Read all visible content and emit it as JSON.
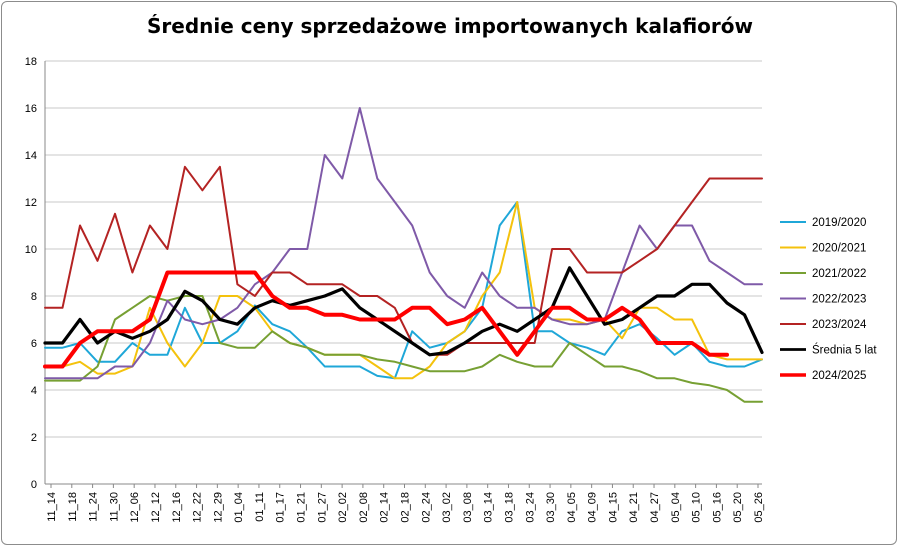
{
  "chart_data": {
    "type": "line",
    "title": "Średnie ceny sprzedażowe importowanych kalafiorów",
    "xlabel": "",
    "ylabel": "",
    "ylim": [
      0,
      18
    ],
    "y_ticks": [
      0,
      2,
      4,
      6,
      8,
      10,
      12,
      14,
      16,
      18
    ],
    "grid": "horizontal",
    "legend_position": "right",
    "x_tick_labels": [
      "11_14",
      "11_18",
      "11_24",
      "11_30",
      "12_06",
      "12_12",
      "12_16",
      "12_22",
      "12_29",
      "01_04",
      "01_11",
      "01_17",
      "01_21",
      "01_27",
      "02_02",
      "02_08",
      "02_14",
      "02_18",
      "02_24",
      "03_02",
      "03_08",
      "03_14",
      "03_18",
      "03_24",
      "03_30",
      "04_05",
      "04_09",
      "04_15",
      "04_21",
      "04_27",
      "05_04",
      "05_10",
      "05_16",
      "05_20",
      "05_26"
    ],
    "series": [
      {
        "name": "2019/2020",
        "color": "#1fa7d8",
        "width": 2,
        "values": [
          5.8,
          5.8,
          6.0,
          5.2,
          5.2,
          6.0,
          5.5,
          5.5,
          7.5,
          6.0,
          6.0,
          6.5,
          7.6,
          6.8,
          6.5,
          5.8,
          5.0,
          5.0,
          5.0,
          4.6,
          4.5,
          6.5,
          5.8,
          6.0,
          6.5,
          7.5,
          11.0,
          12.0,
          6.5,
          6.5,
          6.0,
          5.8,
          5.5,
          6.5,
          6.8,
          6.2,
          5.5,
          6.0,
          5.2,
          5.0,
          5.0,
          5.3
        ]
      },
      {
        "name": "2020/2021",
        "color": "#f4c20d",
        "width": 2,
        "values": [
          5.0,
          5.0,
          5.2,
          4.7,
          4.7,
          5.0,
          7.5,
          6.0,
          5.0,
          6.0,
          8.0,
          8.0,
          7.5,
          6.5,
          6.0,
          5.8,
          5.5,
          5.5,
          5.5,
          5.0,
          4.5,
          4.5,
          5.0,
          6.0,
          6.5,
          8.0,
          9.0,
          12.0,
          7.5,
          7.0,
          7.0,
          6.8,
          7.0,
          6.2,
          7.5,
          7.5,
          7.0,
          7.0,
          5.5,
          5.3,
          5.3,
          5.3
        ]
      },
      {
        "name": "2021/2022",
        "color": "#77a033",
        "width": 2,
        "values": [
          4.4,
          4.4,
          4.4,
          5.0,
          7.0,
          7.5,
          8.0,
          7.8,
          8.0,
          8.0,
          6.0,
          5.8,
          5.8,
          6.5,
          6.0,
          5.8,
          5.5,
          5.5,
          5.5,
          5.3,
          5.2,
          5.0,
          4.8,
          4.8,
          4.8,
          5.0,
          5.5,
          5.2,
          5.0,
          5.0,
          6.0,
          5.5,
          5.0,
          5.0,
          4.8,
          4.5,
          4.5,
          4.3,
          4.2,
          4.0,
          3.5,
          3.5
        ]
      },
      {
        "name": "2022/2023",
        "color": "#7f5aa8",
        "width": 2,
        "values": [
          4.5,
          4.5,
          4.5,
          4.5,
          5.0,
          5.0,
          6.0,
          7.8,
          7.0,
          6.8,
          7.0,
          7.5,
          8.5,
          9.0,
          10.0,
          10.0,
          14.0,
          13.0,
          16.0,
          13.0,
          12.0,
          11.0,
          9.0,
          8.0,
          7.5,
          9.0,
          8.0,
          7.5,
          7.5,
          7.0,
          6.8,
          6.8,
          7.0,
          9.0,
          11.0,
          10.0,
          11.0,
          11.0,
          9.5,
          9.0,
          8.5,
          8.5
        ]
      },
      {
        "name": "2023/2024",
        "color": "#b42323",
        "width": 2,
        "values": [
          7.5,
          7.5,
          11.0,
          9.5,
          11.5,
          9.0,
          11.0,
          10.0,
          13.5,
          12.5,
          13.5,
          8.5,
          8.0,
          9.0,
          9.0,
          8.5,
          8.5,
          8.5,
          8.0,
          8.0,
          7.5,
          6.0,
          5.5,
          5.5,
          6.0,
          6.0,
          6.0,
          6.0,
          6.0,
          10.0,
          10.0,
          9.0,
          9.0,
          9.0,
          9.5,
          10.0,
          11.0,
          12.0,
          13.0,
          13.0,
          13.0,
          13.0
        ]
      },
      {
        "name": "Średnia 5 lat",
        "color": "#000000",
        "width": 3.2,
        "values": [
          6.0,
          6.0,
          7.0,
          6.0,
          6.5,
          6.2,
          6.5,
          7.0,
          8.2,
          7.8,
          7.0,
          6.8,
          7.5,
          7.8,
          7.6,
          7.8,
          8.0,
          8.3,
          7.5,
          7.0,
          6.5,
          6.0,
          5.5,
          5.6,
          6.0,
          6.5,
          6.8,
          6.5,
          7.0,
          7.5,
          9.2,
          8.0,
          6.8,
          7.0,
          7.5,
          8.0,
          8.0,
          8.5,
          8.5,
          7.7,
          7.2,
          5.6
        ]
      },
      {
        "name": "2024/2025",
        "color": "#ff0000",
        "width": 4,
        "values": [
          5.0,
          5.0,
          6.0,
          6.5,
          6.5,
          6.5,
          7.0,
          9.0,
          9.0,
          9.0,
          9.0,
          9.0,
          9.0,
          8.0,
          7.5,
          7.5,
          7.2,
          7.2,
          7.0,
          7.0,
          7.0,
          7.5,
          7.5,
          6.8,
          7.0,
          7.5,
          6.5,
          5.5,
          6.5,
          7.5,
          7.5,
          7.0,
          7.0,
          7.5,
          7.0,
          6.0,
          6.0,
          6.0,
          5.5,
          5.5,
          null,
          null
        ]
      }
    ]
  }
}
